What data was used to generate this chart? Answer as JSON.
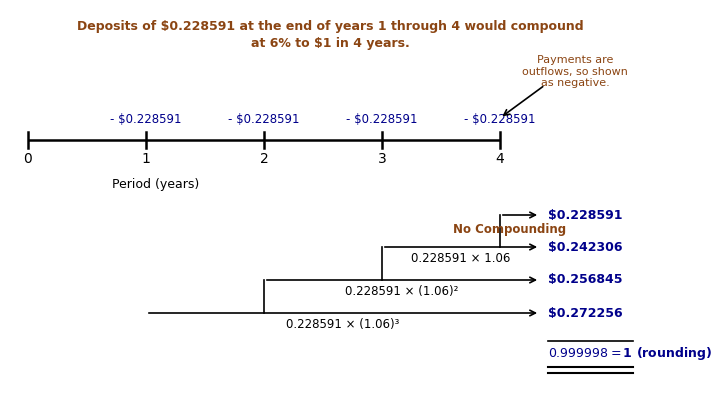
{
  "title_line1": "Deposits of $0.228591 at the end of years 1 through 4 would compound",
  "title_line2": "at 6% to $1 in 4 years.",
  "title_color": "#8B4513",
  "tick_labels": [
    "0",
    "1",
    "2",
    "3",
    "4"
  ],
  "period_label": "Period (years)",
  "payment_label": "- $0.228591",
  "payment_color": "#00008B",
  "annotation_text": "Payments are\noutflows, so shown\nas negative.",
  "annotation_color": "#8B4513",
  "no_compounding_label": "No Compounding",
  "no_compounding_color": "#8B4513",
  "compounding_lines": [
    {
      "label": "",
      "value": "$0.228591"
    },
    {
      "label": "0.228591 × 1.06",
      "value": "$0.242306"
    },
    {
      "label": "0.228591 × (1.06)²",
      "value": "$0.256845"
    },
    {
      "label": "0.228591 × (1.06)³",
      "value": "$0.272256"
    }
  ],
  "total_line": "$0.999998  = $1 (rounding)",
  "total_color": "#00008B",
  "value_color": "#00008B",
  "label_color": "#000000",
  "bg_color": "#FFFFFF"
}
